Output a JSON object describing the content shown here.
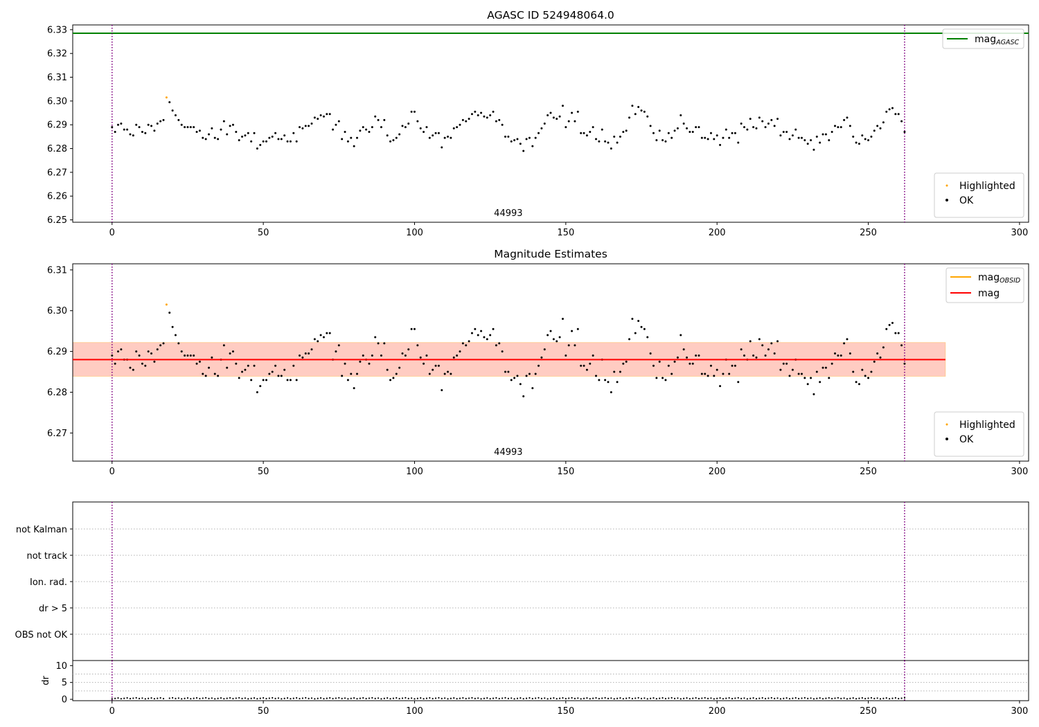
{
  "chart_data": [
    {
      "type": "scatter",
      "title": "AGASC ID 524948064.0",
      "xlim": [
        -13,
        303
      ],
      "ylim": [
        6.249,
        6.332
      ],
      "xticks": [
        0,
        50,
        100,
        150,
        200,
        250,
        300
      ],
      "yticks": [
        6.25,
        6.26,
        6.27,
        6.28,
        6.29,
        6.3,
        6.31,
        6.32,
        6.33
      ],
      "ytick_labels": [
        "6.25",
        "6.26",
        "6.27",
        "6.28",
        "6.29",
        "6.30",
        "6.31",
        "6.32",
        "6.33"
      ],
      "annotation": "44993",
      "annotation_x": 131,
      "vlines": [
        0,
        262
      ],
      "hline": {
        "name": "mag",
        "name_sub": "AGASC",
        "value": 6.3285,
        "color": "#008000"
      },
      "legend_top": [
        {
          "label": "mag",
          "sub": "AGASC",
          "color": "#008000"
        }
      ],
      "legend_bottom": [
        {
          "label": "Highlighted",
          "color": "#ffa500"
        },
        {
          "label": "OK",
          "color": "#000000"
        }
      ],
      "highlighted": [
        {
          "x": 18,
          "y": 6.3015
        }
      ]
    },
    {
      "type": "scatter",
      "title": "Magnitude Estimates",
      "xlim": [
        -13,
        303
      ],
      "ylim": [
        6.2631,
        6.3115
      ],
      "xticks": [
        0,
        50,
        100,
        150,
        200,
        250,
        300
      ],
      "yticks": [
        6.27,
        6.28,
        6.29,
        6.3,
        6.31
      ],
      "ytick_labels": [
        "6.27",
        "6.28",
        "6.29",
        "6.30",
        "6.31"
      ],
      "annotation": "44993",
      "annotation_x": 131,
      "vlines": [
        0,
        262
      ],
      "mean_line": {
        "value": 6.288,
        "x_range": [
          -13,
          275.5
        ],
        "color": "#ff0000"
      },
      "band_outer": {
        "low": 6.2839,
        "high": 6.2922
      },
      "band_inner": {
        "low": 6.2839,
        "high": 6.2922,
        "x_range": [
          0,
          262
        ]
      },
      "legend_top": [
        {
          "label": "mag",
          "sub": "OBSID",
          "color": "#ffa500"
        },
        {
          "label": "mag",
          "sub": "",
          "color": "#ff0000"
        }
      ],
      "legend_bottom": [
        {
          "label": "Highlighted",
          "color": "#ffa500"
        },
        {
          "label": "OK",
          "color": "#000000"
        }
      ],
      "highlighted": [
        {
          "x": 18,
          "y": 6.3015
        }
      ]
    },
    {
      "type": "scatter",
      "title": "",
      "xlim": [
        -13,
        303
      ],
      "flag_categories": [
        "not Kalman",
        "not track",
        "Ion. rad.",
        "dr > 5",
        "OBS not OK"
      ],
      "vlines": [
        0,
        262
      ]
    },
    {
      "type": "scatter",
      "ylabel": "dr",
      "xlim": [
        -13,
        303
      ],
      "ylim": [
        -0.4,
        11.5
      ],
      "yticks": [
        0,
        5,
        10
      ],
      "ytick_labels": [
        "0",
        "5",
        "10"
      ],
      "xticks": [
        0,
        50,
        100,
        150,
        200,
        250,
        300
      ],
      "vlines": [
        0,
        262
      ],
      "dr_typical": 0.3
    }
  ],
  "series_ok": {
    "name": "OK",
    "x": [
      0,
      1,
      2,
      3,
      4,
      5,
      6,
      7,
      8,
      9,
      10,
      11,
      12,
      13,
      14,
      15,
      16,
      17,
      19,
      20,
      21,
      22,
      23,
      24,
      25,
      26,
      27,
      28,
      29,
      30,
      31,
      32,
      33,
      34,
      35,
      36,
      37,
      38,
      39,
      40,
      41,
      42,
      43,
      44,
      45,
      46,
      47,
      48,
      49,
      50,
      51,
      52,
      53,
      54,
      55,
      56,
      57,
      58,
      59,
      60,
      61,
      62,
      63,
      64,
      65,
      66,
      67,
      68,
      69,
      70,
      71,
      72,
      73,
      74,
      75,
      76,
      77,
      78,
      79,
      80,
      81,
      82,
      83,
      84,
      85,
      86,
      87,
      88,
      89,
      90,
      91,
      92,
      93,
      94,
      95,
      96,
      97,
      98,
      99,
      100,
      101,
      102,
      103,
      104,
      105,
      106,
      107,
      108,
      109,
      110,
      111,
      112,
      113,
      114,
      115,
      116,
      117,
      118,
      119,
      120,
      121,
      122,
      123,
      124,
      125,
      126,
      127,
      128,
      129,
      130,
      131,
      132,
      133,
      134,
      135,
      136,
      137,
      138,
      139,
      140,
      141,
      142,
      143,
      144,
      145,
      146,
      147,
      148,
      149,
      150,
      151,
      152,
      153,
      154,
      155,
      156,
      157,
      158,
      159,
      160,
      161,
      162,
      163,
      164,
      165,
      166,
      167,
      168,
      169,
      170,
      171,
      172,
      173,
      174,
      175,
      176,
      177,
      178,
      179,
      180,
      181,
      182,
      183,
      184,
      185,
      186,
      187,
      188,
      189,
      190,
      191,
      192,
      193,
      194,
      195,
      196,
      197,
      198,
      199,
      200,
      201,
      202,
      203,
      204,
      205,
      206,
      207,
      208,
      209,
      210,
      211,
      212,
      213,
      214,
      215,
      216,
      217,
      218,
      219,
      220,
      221,
      222,
      223,
      224,
      225,
      226,
      227,
      228,
      229,
      230,
      231,
      232,
      233,
      234,
      235,
      236,
      237,
      238,
      239,
      240,
      241,
      242,
      243,
      244,
      245,
      246,
      247,
      248,
      249,
      250,
      251,
      252,
      253,
      254,
      255,
      256,
      257,
      258,
      259,
      260,
      261,
      262
    ],
    "y": [
      6.289,
      6.287,
      6.29,
      6.2905,
      6.288,
      6.288,
      6.286,
      6.2855,
      6.29,
      6.289,
      6.287,
      6.2865,
      6.29,
      6.2895,
      6.2875,
      6.2905,
      6.2915,
      6.292,
      6.2995,
      6.296,
      6.294,
      6.292,
      6.29,
      6.289,
      6.289,
      6.289,
      6.289,
      6.287,
      6.2875,
      6.2845,
      6.284,
      6.286,
      6.2885,
      6.2845,
      6.284,
      6.288,
      6.2915,
      6.286,
      6.2895,
      6.29,
      6.287,
      6.2835,
      6.285,
      6.2855,
      6.2865,
      6.283,
      6.2865,
      6.28,
      6.2815,
      6.283,
      6.283,
      6.2845,
      6.285,
      6.2865,
      6.284,
      6.284,
      6.2855,
      6.283,
      6.283,
      6.2865,
      6.283,
      6.289,
      6.2885,
      6.2895,
      6.2895,
      6.2905,
      6.293,
      6.2925,
      6.294,
      6.2935,
      6.2945,
      6.2945,
      6.288,
      6.29,
      6.2915,
      6.284,
      6.287,
      6.283,
      6.2845,
      6.281,
      6.2845,
      6.2875,
      6.289,
      6.288,
      6.287,
      6.289,
      6.2935,
      6.292,
      6.289,
      6.292,
      6.2855,
      6.283,
      6.2835,
      6.2845,
      6.286,
      6.2895,
      6.289,
      6.2905,
      6.2955,
      6.2955,
      6.2915,
      6.2885,
      6.287,
      6.289,
      6.2845,
      6.2855,
      6.2865,
      6.2865,
      6.2805,
      6.2845,
      6.285,
      6.2845,
      6.2885,
      6.289,
      6.29,
      6.292,
      6.2915,
      6.2925,
      6.2945,
      6.2955,
      6.294,
      6.295,
      6.2935,
      6.293,
      6.294,
      6.2955,
      6.2915,
      6.292,
      6.29,
      6.285,
      6.285,
      6.283,
      6.2835,
      6.284,
      6.282,
      6.279,
      6.284,
      6.2845,
      6.281,
      6.2845,
      6.2865,
      6.2885,
      6.2905,
      6.294,
      6.295,
      6.293,
      6.2925,
      6.2935,
      6.298,
      6.289,
      6.2915,
      6.295,
      6.2915,
      6.2955,
      6.2865,
      6.2865,
      6.2855,
      6.287,
      6.289,
      6.284,
      6.283,
      6.288,
      6.283,
      6.2825,
      6.28,
      6.285,
      6.2825,
      6.285,
      6.287,
      6.2875,
      6.293,
      6.298,
      6.2945,
      6.2975,
      6.296,
      6.2955,
      6.2935,
      6.2895,
      6.2865,
      6.2835,
      6.2875,
      6.2835,
      6.283,
      6.2865,
      6.2845,
      6.2875,
      6.2885,
      6.294,
      6.2905,
      6.2885,
      6.287,
      6.287,
      6.289,
      6.289,
      6.2845,
      6.2845,
      6.284,
      6.2865,
      6.284,
      6.2855,
      6.2815,
      6.2845,
      6.288,
      6.2845,
      6.2865,
      6.2865,
      6.2825,
      6.2905,
      6.289,
      6.288,
      6.2925,
      6.289,
      6.2885,
      6.293,
      6.2915,
      6.289,
      6.2905,
      6.292,
      6.2895,
      6.2925,
      6.2855,
      6.287,
      6.287,
      6.284,
      6.2855,
      6.288,
      6.2845,
      6.2845,
      6.2835,
      6.282,
      6.2835,
      6.2795,
      6.285,
      6.2825,
      6.286,
      6.286,
      6.2835,
      6.287,
      6.2895,
      6.289,
      6.289,
      6.292,
      6.293,
      6.2895,
      6.285,
      6.2825,
      6.282,
      6.2855,
      6.284,
      6.2835,
      6.285,
      6.2875,
      6.2895,
      6.2885,
      6.291,
      6.2955,
      6.2965,
      6.297,
      6.2945,
      6.2945,
      6.2915,
      6.287
    ]
  },
  "flag_grid_color": "#b0b0b0",
  "vline_color": "#800080"
}
